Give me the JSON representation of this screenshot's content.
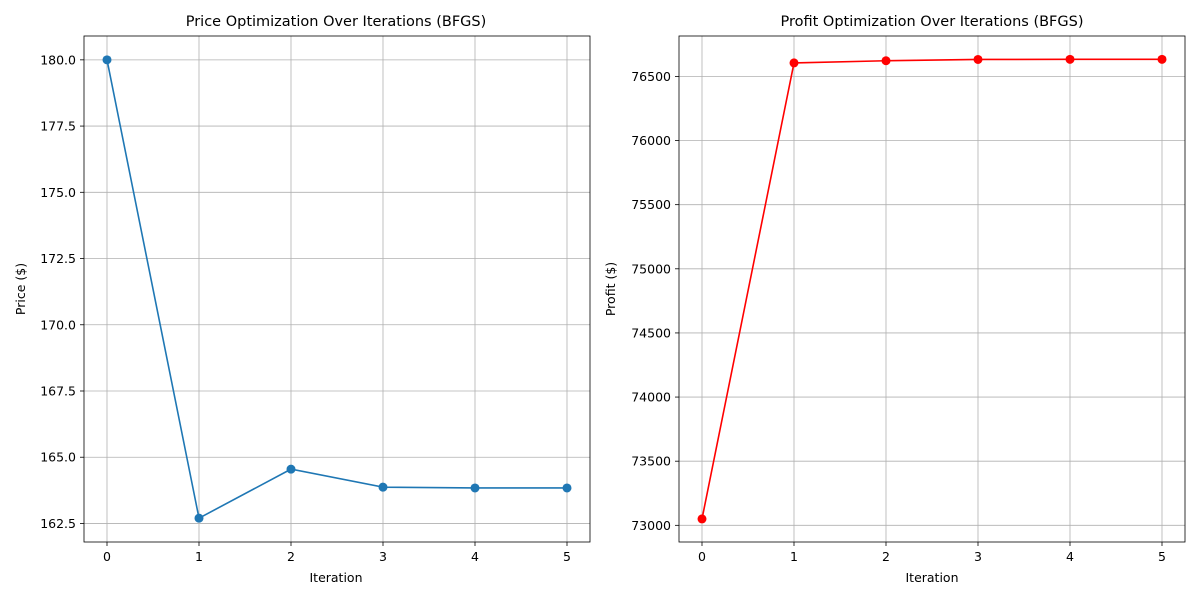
{
  "chart_data": [
    {
      "type": "line",
      "title": "Price Optimization Over Iterations (BFGS)",
      "xlabel": "Iteration",
      "ylabel": "Price ($)",
      "x": [
        0,
        1,
        2,
        3,
        4,
        5
      ],
      "xticks": [
        "0",
        "1",
        "2",
        "3",
        "4",
        "5"
      ],
      "xlim": [
        -0.25,
        5.25
      ],
      "yticks": [
        "162.5",
        "165.0",
        "167.5",
        "170.0",
        "172.5",
        "175.0",
        "177.5",
        "180.0"
      ],
      "ylim": [
        161.8,
        180.9
      ],
      "grid": true,
      "series": [
        {
          "values": [
            180.0,
            162.7,
            164.55,
            163.87,
            163.84,
            163.84
          ],
          "color": "#1f77b4"
        }
      ]
    },
    {
      "type": "line",
      "title": "Profit Optimization Over Iterations (BFGS)",
      "xlabel": "Iteration",
      "ylabel": "Profit ($)",
      "x": [
        0,
        1,
        2,
        3,
        4,
        5
      ],
      "xticks": [
        "0",
        "1",
        "2",
        "3",
        "4",
        "5"
      ],
      "xlim": [
        -0.25,
        5.25
      ],
      "yticks": [
        "73000",
        "73500",
        "74000",
        "74500",
        "75000",
        "75500",
        "76000",
        "76500"
      ],
      "ylim": [
        72870,
        76815
      ],
      "grid": true,
      "series": [
        {
          "values": [
            73050,
            76605,
            76622,
            76632,
            76633,
            76633
          ],
          "color": "#ff0000"
        }
      ]
    }
  ]
}
